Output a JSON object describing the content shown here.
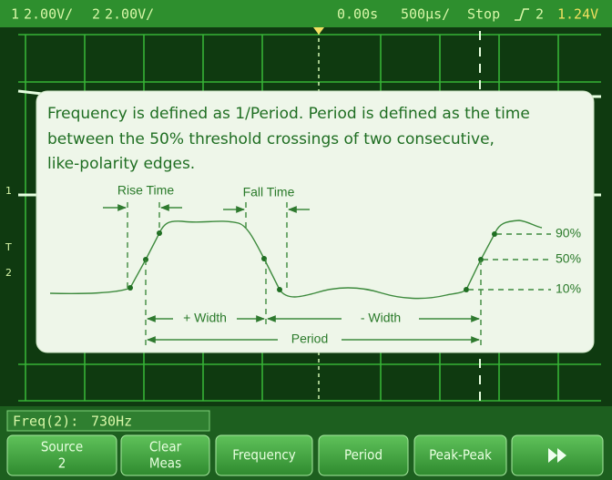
{
  "header": {
    "ch1": "1",
    "ch1_scale": "2.00V/",
    "ch2": "2",
    "ch2_scale": "2.00V/",
    "time_offset": "0.00s",
    "time_scale": "500µs/",
    "run_state": "Stop",
    "trigger_source": "2",
    "trigger_level": "1.24V"
  },
  "markers": [
    "1",
    "T",
    "2"
  ],
  "info": {
    "lines": [
      "Frequency is defined as 1/Period. Period is defined as the time",
      "between the 50% threshold crossings of two consecutive,",
      "like-polarity edges."
    ],
    "rise_time": "Rise Time",
    "fall_time": "Fall Time",
    "levels": [
      "90%",
      "50%",
      "10%"
    ],
    "pos_width": "+ Width",
    "neg_width": "- Width",
    "period": "Period"
  },
  "measurement": {
    "label": "Freq(2):",
    "value": "730Hz"
  },
  "softkeys": [
    {
      "lines": [
        "Source",
        "2"
      ]
    },
    {
      "lines": [
        "Clear",
        "Meas"
      ]
    },
    {
      "lines": [
        "Frequency"
      ]
    },
    {
      "lines": [
        "Period"
      ]
    },
    {
      "lines": [
        "Peak-Peak"
      ]
    }
  ]
}
